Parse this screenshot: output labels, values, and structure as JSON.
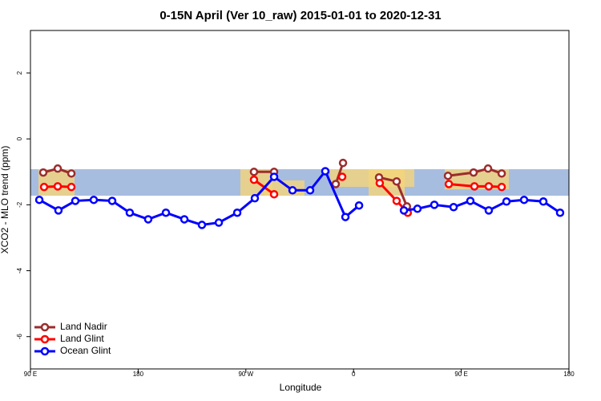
{
  "chart_data": {
    "type": "line",
    "title": "0-15N April (Ver 10_raw)   2015-01-01 to 2020-12-31",
    "x_label": "Longitude",
    "y_label": "XCO2 - MLO trend (ppm)",
    "xlim": [
      90,
      540
    ],
    "ylim": [
      -6.98,
      3.29
    ],
    "xticks": [
      {
        "value": 90,
        "label": "90 E"
      },
      180,
      {
        "value": 270,
        "label": "90 W"
      },
      {
        "value": 360,
        "label": "0"
      },
      {
        "value": 450,
        "label": "90 E"
      },
      {
        "value": 540,
        "label": "180"
      }
    ],
    "yticks": [
      -6,
      -4,
      -2,
      0,
      2
    ],
    "legend": "bottom-left",
    "series": [
      {
        "name": "Land Nadir",
        "color": "#9b2d2d",
        "x": [
          100.7,
          112.8,
          124.2,
          null,
          276.8,
          293.6,
          null,
          345.1,
          351.2,
          null,
          381.3,
          396.0,
          404.6,
          null,
          438.9,
          460.3,
          472.4,
          483.8
        ],
        "values": [
          -1.02,
          -0.9,
          -1.05,
          null,
          -1.0,
          -1.0,
          null,
          -1.37,
          -0.73,
          null,
          -1.17,
          -1.29,
          -2.05,
          null,
          -1.12,
          -1.02,
          -0.9,
          -1.05
        ]
      },
      {
        "name": "Land Glint",
        "color": "#ff0000",
        "x": [
          101.4,
          112.8,
          124.2,
          null,
          276.8,
          293.6,
          null,
          350.5,
          null,
          381.9,
          396.0,
          405.3,
          null,
          439.6,
          461.0,
          473.0,
          483.8
        ],
        "values": [
          -1.46,
          -1.44,
          -1.46,
          null,
          -1.24,
          -1.68,
          null,
          -1.15,
          null,
          -1.34,
          -1.88,
          -2.24,
          null,
          -1.37,
          -1.44,
          -1.44,
          -1.46
        ]
      },
      {
        "name": "Ocean Glint",
        "color": "#0000ff",
        "x": [
          97.4,
          113.4,
          127.5,
          142.9,
          158.3,
          173.0,
          188.4,
          203.2,
          218.6,
          233.3,
          247.4,
          262.8,
          277.5,
          293.6,
          309.0,
          323.7,
          336.4,
          353.2,
          364.6,
          null,
          402.1,
          413.4,
          427.5,
          443.6,
          457.6,
          473.0,
          487.8,
          502.5,
          518.6,
          532.6
        ],
        "values": [
          -1.85,
          -2.17,
          -1.88,
          -1.85,
          -1.88,
          -2.24,
          -2.44,
          -2.24,
          -2.44,
          -2.61,
          -2.54,
          -2.24,
          -1.8,
          -1.15,
          -1.56,
          -1.56,
          -0.98,
          -2.37,
          -2.02,
          null,
          -2.17,
          -2.12,
          -2.0,
          -2.07,
          -1.88,
          -2.17,
          -1.9,
          -1.85,
          -1.9,
          -2.24
        ]
      }
    ]
  }
}
